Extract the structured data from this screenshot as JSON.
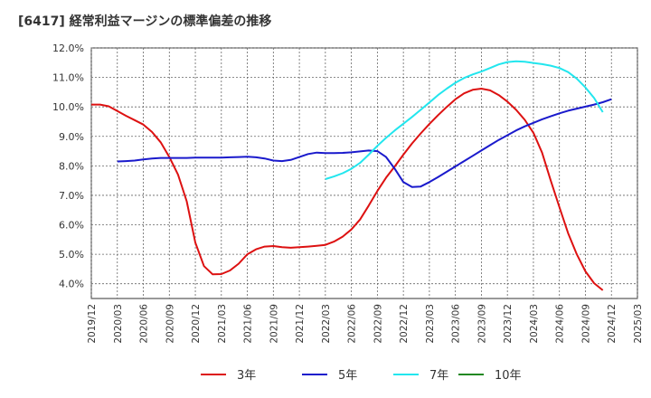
{
  "title": "[6417]  経常利益マージンの標準偏差の推移",
  "chart_data": {
    "type": "line",
    "title": "[6417]  経常利益マージンの標準偏差の推移",
    "xlabel": "",
    "ylabel": "",
    "x_ticks": [
      "2019/12",
      "2020/03",
      "2020/06",
      "2020/09",
      "2020/12",
      "2021/03",
      "2021/06",
      "2021/09",
      "2021/12",
      "2022/03",
      "2022/06",
      "2022/09",
      "2022/12",
      "2023/03",
      "2023/06",
      "2023/09",
      "2023/12",
      "2024/03",
      "2024/06",
      "2024/09",
      "2024/12",
      "2025/03"
    ],
    "y_ticks": [
      "4.0%",
      "5.0%",
      "6.0%",
      "7.0%",
      "8.0%",
      "9.0%",
      "10.0%",
      "11.0%",
      "12.0%"
    ],
    "ylim": [
      3.5,
      12.0
    ],
    "grid": true,
    "legend_position": "bottom",
    "series": [
      {
        "name": "3年",
        "color": "#dd1111",
        "points": [
          [
            "2019/12",
            10.08
          ],
          [
            "2020/01",
            10.08
          ],
          [
            "2020/02",
            10.02
          ],
          [
            "2020/03",
            9.86
          ],
          [
            "2020/04",
            9.7
          ],
          [
            "2020/05",
            9.55
          ],
          [
            "2020/06",
            9.4
          ],
          [
            "2020/07",
            9.15
          ],
          [
            "2020/08",
            8.8
          ],
          [
            "2020/09",
            8.3
          ],
          [
            "2020/10",
            7.7
          ],
          [
            "2020/11",
            6.8
          ],
          [
            "2020/12",
            5.4
          ],
          [
            "2021/01",
            4.6
          ],
          [
            "2021/02",
            4.32
          ],
          [
            "2021/03",
            4.33
          ],
          [
            "2021/04",
            4.45
          ],
          [
            "2021/05",
            4.68
          ],
          [
            "2021/06",
            5.0
          ],
          [
            "2021/07",
            5.17
          ],
          [
            "2021/08",
            5.26
          ],
          [
            "2021/09",
            5.28
          ],
          [
            "2021/10",
            5.24
          ],
          [
            "2021/11",
            5.22
          ],
          [
            "2021/12",
            5.24
          ],
          [
            "2022/01",
            5.26
          ],
          [
            "2022/02",
            5.29
          ],
          [
            "2022/03",
            5.32
          ],
          [
            "2022/04",
            5.43
          ],
          [
            "2022/05",
            5.6
          ],
          [
            "2022/06",
            5.84
          ],
          [
            "2022/07",
            6.18
          ],
          [
            "2022/08",
            6.65
          ],
          [
            "2022/09",
            7.15
          ],
          [
            "2022/10",
            7.6
          ],
          [
            "2022/11",
            7.98
          ],
          [
            "2022/12",
            8.38
          ],
          [
            "2023/01",
            8.76
          ],
          [
            "2023/02",
            9.1
          ],
          [
            "2023/03",
            9.42
          ],
          [
            "2023/04",
            9.72
          ],
          [
            "2023/05",
            10.0
          ],
          [
            "2023/06",
            10.26
          ],
          [
            "2023/07",
            10.46
          ],
          [
            "2023/08",
            10.58
          ],
          [
            "2023/09",
            10.62
          ],
          [
            "2023/10",
            10.56
          ],
          [
            "2023/11",
            10.4
          ],
          [
            "2023/12",
            10.18
          ],
          [
            "2024/01",
            9.9
          ],
          [
            "2024/02",
            9.56
          ],
          [
            "2024/03",
            9.12
          ],
          [
            "2024/04",
            8.45
          ],
          [
            "2024/05",
            7.5
          ],
          [
            "2024/06",
            6.6
          ],
          [
            "2024/07",
            5.72
          ],
          [
            "2024/08",
            5.0
          ],
          [
            "2024/09",
            4.42
          ],
          [
            "2024/10",
            4.02
          ],
          [
            "2024/11",
            3.78
          ]
        ]
      },
      {
        "name": "5年",
        "color": "#1a1acc",
        "points": [
          [
            "2020/03",
            8.15
          ],
          [
            "2020/04",
            8.16
          ],
          [
            "2020/05",
            8.18
          ],
          [
            "2020/06",
            8.22
          ],
          [
            "2020/07",
            8.25
          ],
          [
            "2020/08",
            8.27
          ],
          [
            "2020/09",
            8.27
          ],
          [
            "2020/10",
            8.27
          ],
          [
            "2020/11",
            8.27
          ],
          [
            "2020/12",
            8.28
          ],
          [
            "2021/01",
            8.28
          ],
          [
            "2021/02",
            8.28
          ],
          [
            "2021/03",
            8.28
          ],
          [
            "2021/04",
            8.29
          ],
          [
            "2021/05",
            8.3
          ],
          [
            "2021/06",
            8.31
          ],
          [
            "2021/07",
            8.29
          ],
          [
            "2021/08",
            8.25
          ],
          [
            "2021/09",
            8.18
          ],
          [
            "2021/10",
            8.16
          ],
          [
            "2021/11",
            8.2
          ],
          [
            "2021/12",
            8.3
          ],
          [
            "2022/01",
            8.4
          ],
          [
            "2022/02",
            8.45
          ],
          [
            "2022/03",
            8.43
          ],
          [
            "2022/04",
            8.43
          ],
          [
            "2022/05",
            8.44
          ],
          [
            "2022/06",
            8.46
          ],
          [
            "2022/07",
            8.49
          ],
          [
            "2022/08",
            8.52
          ],
          [
            "2022/09",
            8.5
          ],
          [
            "2022/10",
            8.3
          ],
          [
            "2022/11",
            7.9
          ],
          [
            "2022/12",
            7.45
          ],
          [
            "2023/01",
            7.28
          ],
          [
            "2023/02",
            7.3
          ],
          [
            "2023/03",
            7.45
          ],
          [
            "2023/04",
            7.62
          ],
          [
            "2023/05",
            7.8
          ],
          [
            "2023/06",
            7.98
          ],
          [
            "2023/07",
            8.16
          ],
          [
            "2023/08",
            8.34
          ],
          [
            "2023/09",
            8.52
          ],
          [
            "2023/10",
            8.7
          ],
          [
            "2023/11",
            8.88
          ],
          [
            "2023/12",
            9.04
          ],
          [
            "2024/01",
            9.2
          ],
          [
            "2024/02",
            9.34
          ],
          [
            "2024/03",
            9.46
          ],
          [
            "2024/04",
            9.58
          ],
          [
            "2024/05",
            9.68
          ],
          [
            "2024/06",
            9.78
          ],
          [
            "2024/07",
            9.87
          ],
          [
            "2024/08",
            9.94
          ],
          [
            "2024/09",
            10.01
          ],
          [
            "2024/10",
            10.08
          ],
          [
            "2024/11",
            10.16
          ],
          [
            "2024/12",
            10.26
          ]
        ]
      },
      {
        "name": "7年",
        "color": "#22e6ee",
        "points": [
          [
            "2022/03",
            7.55
          ],
          [
            "2022/04",
            7.64
          ],
          [
            "2022/05",
            7.75
          ],
          [
            "2022/06",
            7.9
          ],
          [
            "2022/07",
            8.1
          ],
          [
            "2022/08",
            8.38
          ],
          [
            "2022/09",
            8.68
          ],
          [
            "2022/10",
            8.95
          ],
          [
            "2022/11",
            9.2
          ],
          [
            "2022/12",
            9.43
          ],
          [
            "2023/01",
            9.66
          ],
          [
            "2023/02",
            9.9
          ],
          [
            "2023/03",
            10.15
          ],
          [
            "2023/04",
            10.4
          ],
          [
            "2023/05",
            10.62
          ],
          [
            "2023/06",
            10.82
          ],
          [
            "2023/07",
            10.98
          ],
          [
            "2023/08",
            11.1
          ],
          [
            "2023/09",
            11.2
          ],
          [
            "2023/10",
            11.32
          ],
          [
            "2023/11",
            11.44
          ],
          [
            "2023/12",
            11.52
          ],
          [
            "2024/01",
            11.55
          ],
          [
            "2024/02",
            11.53
          ],
          [
            "2024/03",
            11.49
          ],
          [
            "2024/04",
            11.45
          ],
          [
            "2024/05",
            11.4
          ],
          [
            "2024/06",
            11.32
          ],
          [
            "2024/07",
            11.18
          ],
          [
            "2024/08",
            10.96
          ],
          [
            "2024/09",
            10.66
          ],
          [
            "2024/10",
            10.3
          ],
          [
            "2024/11",
            9.82
          ]
        ]
      },
      {
        "name": "10年",
        "color": "#228822",
        "points": []
      }
    ]
  }
}
